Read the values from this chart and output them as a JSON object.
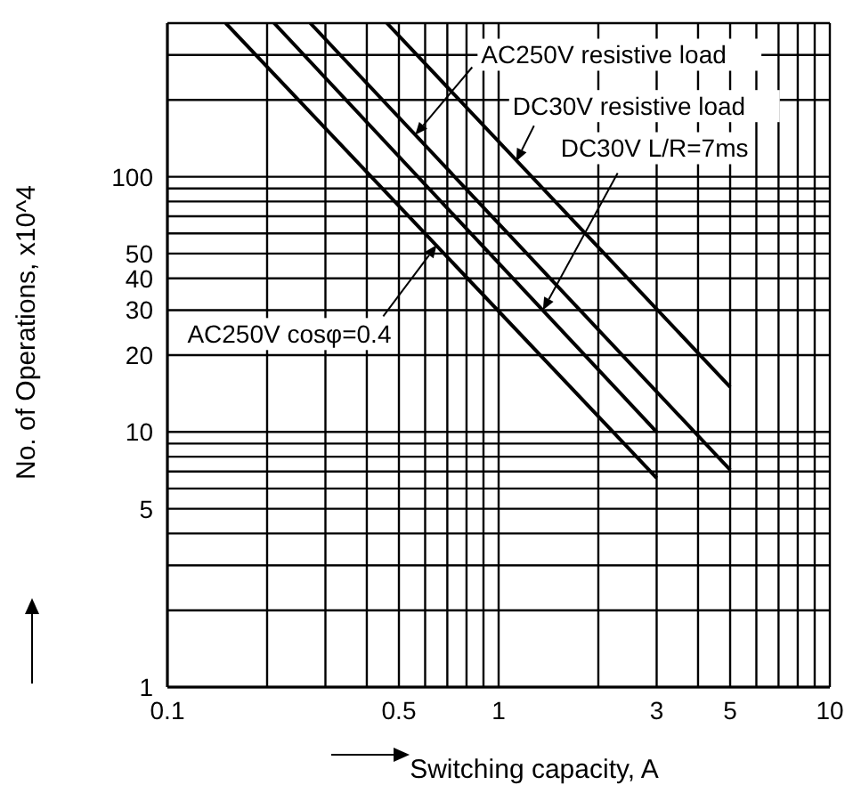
{
  "chart_data": {
    "type": "line",
    "xlabel": "Switching capacity, A",
    "ylabel": "No. of Operations, x10^4",
    "log": "xy",
    "grid": true,
    "marker": "none",
    "line_style": "solid",
    "xlim": [
      0.1,
      10
    ],
    "ylim": [
      1,
      400
    ],
    "xticks": [
      0.1,
      {
        "value": 0.2,
        "label": null
      },
      {
        "value": 0.3,
        "label": null
      },
      {
        "value": 0.4,
        "label": null
      },
      0.5,
      {
        "value": 0.6,
        "label": null
      },
      {
        "value": 0.7,
        "label": null
      },
      {
        "value": 0.8,
        "label": null
      },
      {
        "value": 0.9,
        "label": null
      },
      1,
      {
        "value": 2,
        "label": null
      },
      3,
      {
        "value": 4,
        "label": null
      },
      5,
      {
        "value": 6,
        "label": null
      },
      {
        "value": 7,
        "label": null
      },
      {
        "value": 8,
        "label": null
      },
      {
        "value": 9,
        "label": null
      },
      10
    ],
    "yticks": [
      1,
      {
        "value": 2,
        "label": null
      },
      {
        "value": 3,
        "label": null
      },
      {
        "value": 4,
        "label": null
      },
      5,
      {
        "value": 6,
        "label": null
      },
      {
        "value": 7,
        "label": null
      },
      {
        "value": 8,
        "label": null
      },
      {
        "value": 9,
        "label": null
      },
      10,
      20,
      30,
      40,
      50,
      {
        "value": 60,
        "label": null
      },
      {
        "value": 70,
        "label": null
      },
      {
        "value": 80,
        "label": null
      },
      {
        "value": 90,
        "label": null
      },
      100,
      {
        "value": 200,
        "label": null
      },
      {
        "value": 300,
        "label": null
      }
    ],
    "series": [
      {
        "color": "#000000",
        "x": [
          0.15,
          3
        ],
        "values": [
          400,
          6.6
        ]
      },
      {
        "color": "#000000",
        "x": [
          0.21,
          3
        ],
        "values": [
          400,
          10
        ]
      },
      {
        "color": "#000000",
        "x": [
          0.27,
          5
        ],
        "values": [
          400,
          7.1
        ]
      },
      {
        "color": "#000000",
        "x": [
          0.46,
          5
        ],
        "values": [
          400,
          15
        ]
      }
    ],
    "annotations": [
      {
        "text": "AC250V resistive load",
        "x": 0.56,
        "y": 146
      },
      {
        "text": "DC30V resistive load",
        "x": 1.13,
        "y": 115
      },
      {
        "text": "DC30V L/R=7ms",
        "x": 1.36,
        "y": 30
      },
      {
        "text": "AC250V cosφ=0.4",
        "x": 0.65,
        "y": 54
      }
    ]
  }
}
